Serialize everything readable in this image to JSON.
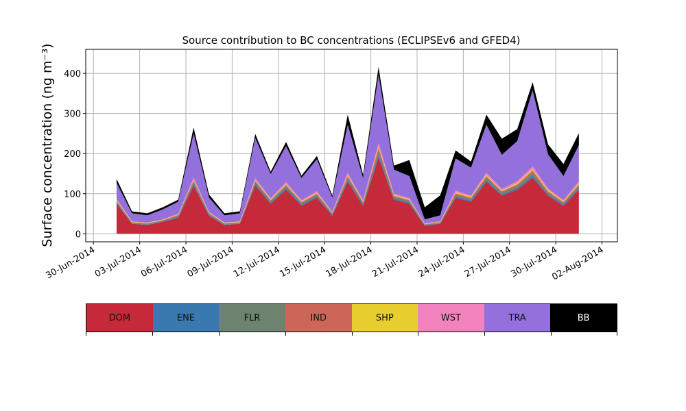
{
  "chart_data": {
    "type": "area",
    "title": "Source contribution to BC concentrations (ECLIPSEv6 and GFED4)",
    "ylabel": "Surface concentration (ng m⁻³)",
    "xlabel": "",
    "ylim": [
      -20,
      460
    ],
    "xlim": [
      "2014-06-29T12:00",
      "2014-08-03T00:00"
    ],
    "yticks": [
      0,
      100,
      200,
      300,
      400
    ],
    "xticks": [
      "30-Jun-2014",
      "03-Jul-2014",
      "06-Jul-2014",
      "09-Jul-2014",
      "12-Jul-2014",
      "15-Jul-2014",
      "18-Jul-2014",
      "21-Jul-2014",
      "24-Jul-2014",
      "27-Jul-2014",
      "30-Jul-2014",
      "02-Aug-2014"
    ],
    "grid": true,
    "stacked": true,
    "x": [
      "2014-07-01T12:00",
      "2014-07-02T12:00",
      "2014-07-03T12:00",
      "2014-07-04T12:00",
      "2014-07-05T12:00",
      "2014-07-06T12:00",
      "2014-07-07T12:00",
      "2014-07-08T12:00",
      "2014-07-09T12:00",
      "2014-07-10T12:00",
      "2014-07-11T12:00",
      "2014-07-12T12:00",
      "2014-07-13T12:00",
      "2014-07-14T12:00",
      "2014-07-15T12:00",
      "2014-07-16T12:00",
      "2014-07-17T12:00",
      "2014-07-18T12:00",
      "2014-07-19T12:00",
      "2014-07-20T12:00",
      "2014-07-21T12:00",
      "2014-07-22T12:00",
      "2014-07-23T12:00",
      "2014-07-24T12:00",
      "2014-07-25T12:00",
      "2014-07-26T12:00",
      "2014-07-27T12:00",
      "2014-07-28T12:00",
      "2014-07-29T12:00",
      "2014-07-30T12:00",
      "2014-07-31T12:00"
    ],
    "series": [
      {
        "name": "DOM",
        "color": "#c52a3a",
        "values": [
          75,
          25,
          22,
          30,
          40,
          120,
          45,
          22,
          25,
          120,
          75,
          110,
          70,
          90,
          45,
          130,
          70,
          190,
          85,
          75,
          20,
          25,
          90,
          80,
          130,
          95,
          110,
          140,
          95,
          70,
          110
        ]
      },
      {
        "name": "ENE",
        "color": "#3a78b0",
        "values": [
          3,
          1,
          1,
          1,
          2,
          4,
          2,
          1,
          1,
          4,
          3,
          4,
          3,
          3,
          2,
          4,
          3,
          6,
          3,
          3,
          1,
          1,
          3,
          3,
          4,
          3,
          4,
          5,
          3,
          3,
          4
        ]
      },
      {
        "name": "FLR",
        "color": "#6e8270",
        "values": [
          3,
          2,
          2,
          2,
          3,
          5,
          3,
          2,
          2,
          5,
          4,
          5,
          4,
          4,
          3,
          6,
          4,
          10,
          4,
          4,
          2,
          2,
          5,
          4,
          6,
          5,
          5,
          7,
          5,
          4,
          5
        ]
      },
      {
        "name": "IND",
        "color": "#cc6658",
        "values": [
          2,
          1,
          1,
          1,
          2,
          4,
          2,
          1,
          1,
          3,
          2,
          3,
          2,
          3,
          2,
          4,
          2,
          8,
          3,
          2,
          1,
          1,
          3,
          3,
          4,
          3,
          4,
          6,
          3,
          2,
          4
        ]
      },
      {
        "name": "SHP",
        "color": "#e8cf2f",
        "values": [
          2,
          1,
          1,
          1,
          1,
          2,
          1,
          1,
          1,
          2,
          2,
          2,
          2,
          2,
          1,
          2,
          2,
          3,
          2,
          2,
          1,
          1,
          3,
          2,
          3,
          2,
          3,
          3,
          3,
          2,
          3
        ]
      },
      {
        "name": "WST",
        "color": "#f282bd",
        "values": [
          2,
          1,
          1,
          1,
          2,
          5,
          2,
          1,
          1,
          5,
          3,
          5,
          3,
          4,
          2,
          6,
          3,
          9,
          3,
          3,
          1,
          1,
          4,
          3,
          5,
          4,
          5,
          7,
          4,
          3,
          5
        ]
      },
      {
        "name": "TRA",
        "color": "#9370db",
        "values": [
          40,
          20,
          18,
          25,
          30,
          110,
          35,
          18,
          20,
          100,
          60,
          90,
          55,
          80,
          35,
          120,
          55,
          170,
          60,
          55,
          10,
          15,
          80,
          70,
          120,
          85,
          100,
          190,
          85,
          60,
          90
        ]
      },
      {
        "name": "BB",
        "color": "#000000",
        "values": [
          10,
          5,
          5,
          5,
          5,
          15,
          8,
          5,
          5,
          10,
          6,
          10,
          6,
          8,
          5,
          25,
          8,
          20,
          10,
          40,
          30,
          50,
          20,
          15,
          25,
          40,
          30,
          20,
          25,
          30,
          30
        ]
      }
    ],
    "legend_position": "below"
  }
}
